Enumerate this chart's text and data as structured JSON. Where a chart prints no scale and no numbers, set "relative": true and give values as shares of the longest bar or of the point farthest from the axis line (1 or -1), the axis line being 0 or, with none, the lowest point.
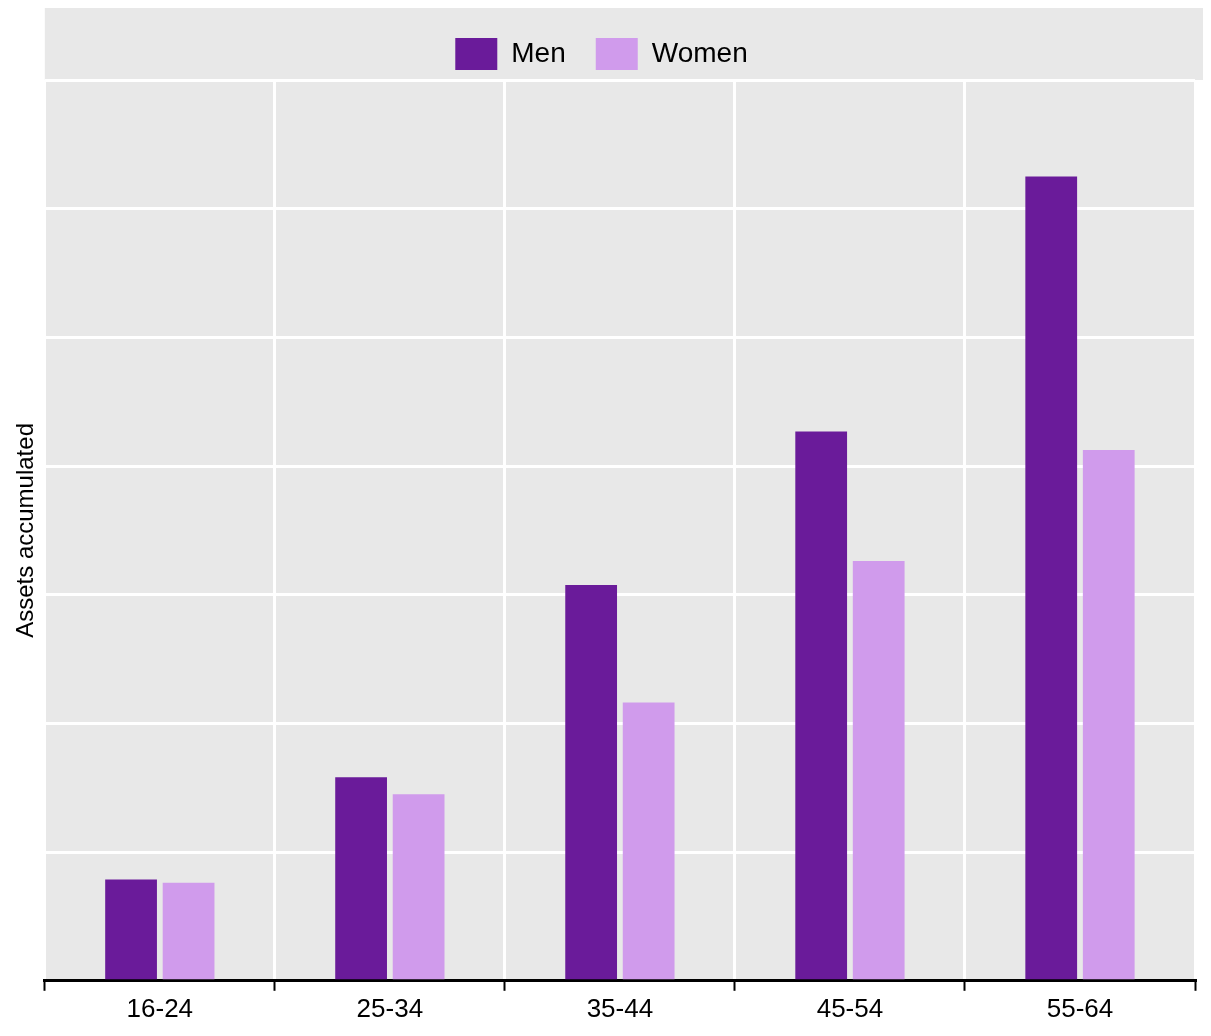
{
  "chart_data": {
    "type": "bar",
    "ylabel": "Assets accumulated",
    "relative": true,
    "grid": true,
    "legend": "top",
    "categories": [
      "16-24",
      "25-34",
      "35-44",
      "45-54",
      "55-64"
    ],
    "series": [
      {
        "name": "Men",
        "color": "#6a1b9a",
        "values": [
          0.126,
          0.253,
          0.492,
          0.683,
          1
        ]
      },
      {
        "name": "Women",
        "color": "#d09bec",
        "values": [
          0.122,
          0.232,
          0.346,
          0.522,
          0.66
        ]
      }
    ]
  }
}
